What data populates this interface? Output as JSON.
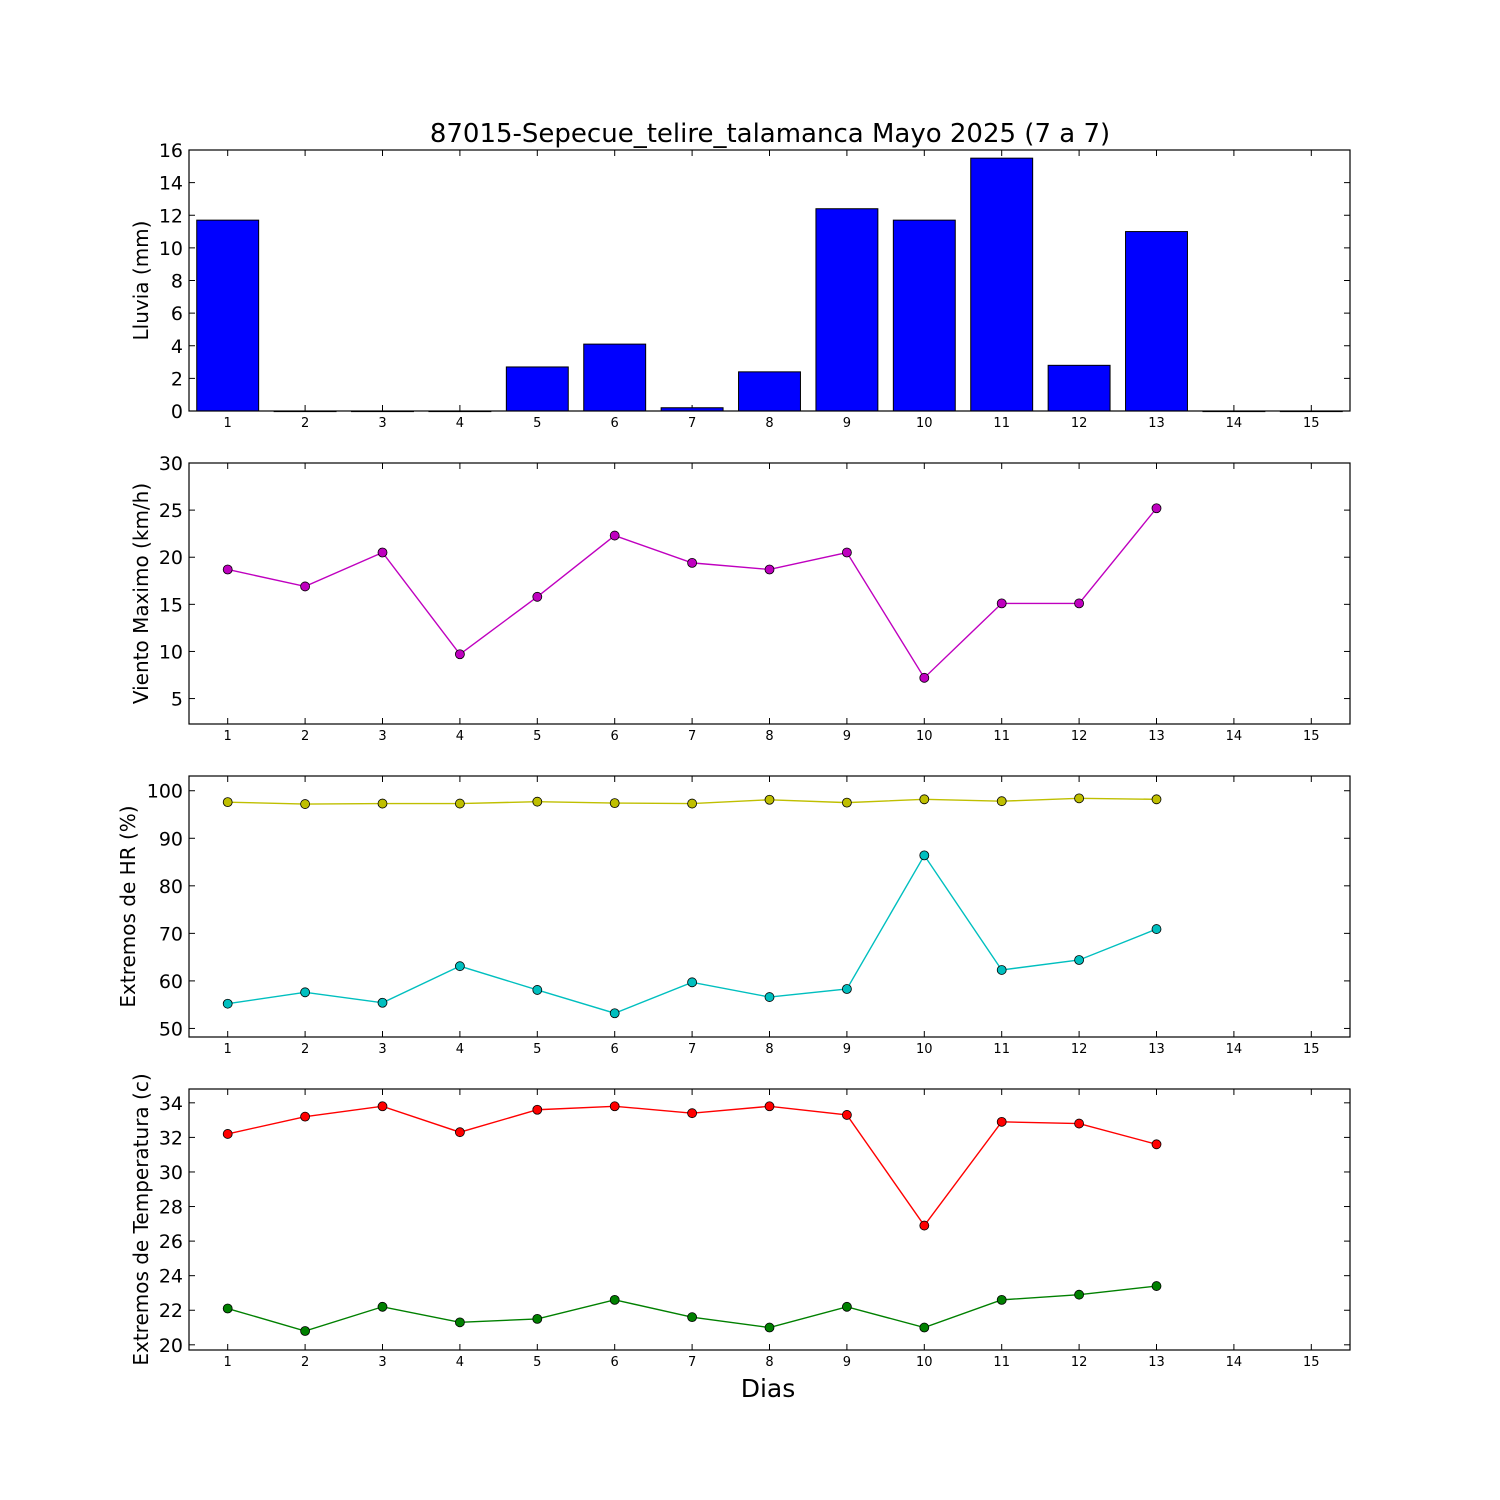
{
  "chart_data": {
    "title": "87015-Sepecue_telire_talamanca Mayo 2025  (7 a 7)",
    "xlabel": "Dias",
    "x_ticks": [
      "1",
      "2",
      "3",
      "4",
      "5",
      "6",
      "7",
      "8",
      "9",
      "10",
      "11",
      "12",
      "13",
      "14",
      "15"
    ],
    "x_range": [
      0.5,
      15.5
    ],
    "panels": [
      {
        "type": "bar",
        "ylabel": "Lluvia (mm)",
        "ylim": [
          0,
          16
        ],
        "yticks": [
          "0",
          "2",
          "4",
          "6",
          "8",
          "10",
          "12",
          "14",
          "16"
        ],
        "x": [
          1,
          2,
          3,
          4,
          5,
          6,
          7,
          8,
          9,
          10,
          11,
          12,
          13,
          14,
          15
        ],
        "series": [
          {
            "values": [
              11.7,
              0,
              0,
              0,
              2.7,
              4.1,
              0.2,
              2.4,
              12.4,
              11.7,
              15.5,
              2.8,
              11.0,
              0,
              0
            ],
            "color": "#0000ff"
          }
        ]
      },
      {
        "type": "line",
        "ylabel": "Viento Maximo (km/h)",
        "ylim": [
          2.3,
          30
        ],
        "yticks": [
          "5",
          "10",
          "15",
          "20",
          "25",
          "30"
        ],
        "x": [
          1,
          2,
          3,
          4,
          5,
          6,
          7,
          8,
          9,
          10,
          11,
          12,
          13
        ],
        "series": [
          {
            "values": [
              18.7,
              16.9,
              20.5,
              9.7,
              15.8,
              22.3,
              19.4,
              18.7,
              20.5,
              7.2,
              15.1,
              15.1,
              25.2
            ],
            "color": "#bf00bf"
          }
        ]
      },
      {
        "type": "line",
        "ylabel": "Extremos de HR (%)",
        "ylim": [
          48.2,
          103.1
        ],
        "yticks": [
          "50",
          "60",
          "70",
          "80",
          "90",
          "100"
        ],
        "x": [
          1,
          2,
          3,
          4,
          5,
          6,
          7,
          8,
          9,
          10,
          11,
          12,
          13
        ],
        "series": [
          {
            "values": [
              97.6,
              97.2,
              97.3,
              97.3,
              97.7,
              97.4,
              97.3,
              98.1,
              97.5,
              98.2,
              97.8,
              98.4,
              98.2
            ],
            "color": "#bfbf00"
          },
          {
            "values": [
              55.2,
              57.6,
              55.4,
              63.1,
              58.1,
              53.2,
              59.7,
              56.6,
              58.3,
              86.4,
              62.3,
              64.4,
              70.9
            ],
            "color": "#00bfbf"
          }
        ]
      },
      {
        "type": "line",
        "ylabel": "Extremos de Temperatura (c)",
        "ylim": [
          19.7,
          34.8
        ],
        "yticks": [
          "20",
          "22",
          "24",
          "26",
          "28",
          "30",
          "32",
          "34"
        ],
        "x": [
          1,
          2,
          3,
          4,
          5,
          6,
          7,
          8,
          9,
          10,
          11,
          12,
          13
        ],
        "series": [
          {
            "values": [
              32.2,
              33.2,
              33.8,
              32.3,
              33.6,
              33.8,
              33.4,
              33.8,
              33.3,
              26.9,
              32.9,
              32.8,
              31.6
            ],
            "color": "#ff0000"
          },
          {
            "values": [
              22.1,
              20.8,
              22.2,
              21.3,
              21.5,
              22.6,
              21.6,
              21.0,
              22.2,
              21.0,
              22.6,
              22.9,
              23.4
            ],
            "color": "#008000"
          }
        ]
      }
    ]
  }
}
